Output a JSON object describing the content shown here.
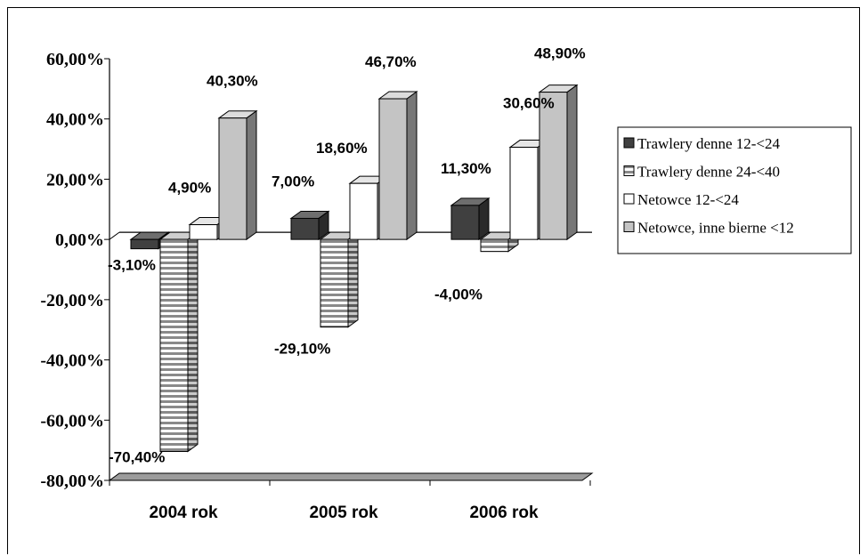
{
  "chart_data": {
    "type": "bar",
    "title": "",
    "xlabel": "",
    "ylabel": "",
    "categories": [
      "2004 rok",
      "2005 rok",
      "2006 rok"
    ],
    "ylim": [
      -80,
      60
    ],
    "yticks": [
      60,
      40,
      20,
      0,
      -20,
      -40,
      -60,
      -80
    ],
    "ytick_labels": [
      "60,00%",
      "40,00%",
      "20,00%",
      "0,00%",
      "-20,00%",
      "-40,00%",
      "-60,00%",
      "-80,00%"
    ],
    "series": [
      {
        "name": "Trawlery denne 12-<24",
        "values": [
          -3.1,
          7.0,
          11.3
        ],
        "labels": [
          "-3,10%",
          "7,00%",
          "11,30%"
        ],
        "color": "#404040",
        "side": "#2a2a2a",
        "top": "#6e6e6e",
        "pattern": "solid"
      },
      {
        "name": "Trawlery denne 24-<40",
        "values": [
          -70.4,
          -29.1,
          -4.0
        ],
        "labels": [
          "-70,40%",
          "-29,10%",
          "-4,00%"
        ],
        "color": "#ffffff",
        "side": "#7a7a7a",
        "top": "#cfcfcf",
        "pattern": "stripes"
      },
      {
        "name": "Netowce 12-<24",
        "values": [
          4.9,
          18.6,
          30.6
        ],
        "labels": [
          "4,90%",
          "18,60%",
          "30,60%"
        ],
        "color": "#ffffff",
        "side": "#9a9a9a",
        "top": "#e6e6e6",
        "pattern": "solid"
      },
      {
        "name": "Netowce, inne bierne <12",
        "values": [
          40.3,
          46.7,
          48.9
        ],
        "labels": [
          "40,30%",
          "46,70%",
          "48,90%"
        ],
        "color": "#c4c4c4",
        "side": "#777777",
        "top": "#dcdcdc",
        "pattern": "solid"
      }
    ],
    "legend_position": "right",
    "grid": false,
    "style": "3d-clustered-column"
  }
}
